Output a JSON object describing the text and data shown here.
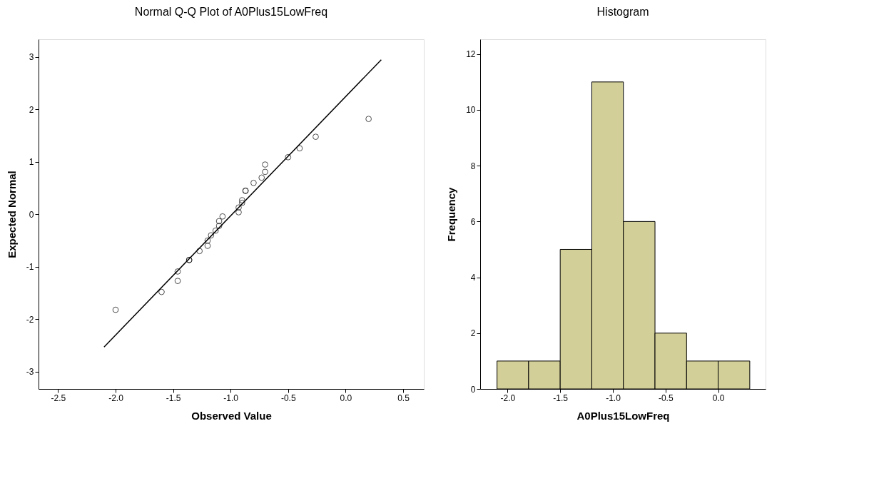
{
  "chart_data": [
    {
      "type": "scatter",
      "title": "Normal Q-Q Plot of A0Plus15LowFreq",
      "xlabel": "Observed Value",
      "ylabel": "Expected Normal",
      "xlim": [
        -2.67,
        0.68
      ],
      "ylim": [
        -3.33,
        3.34
      ],
      "xticks": [
        {
          "value": -2.5,
          "label": "-2.5"
        },
        {
          "value": -2,
          "label": "-2.0"
        },
        {
          "value": -1.5,
          "label": "-1.5"
        },
        {
          "value": -1,
          "label": "-1.0"
        },
        {
          "value": -0.5,
          "label": "-0.5"
        },
        {
          "value": 0,
          "label": "0.0"
        },
        {
          "value": 0.5,
          "label": "0.5"
        }
      ],
      "yticks": [
        -3,
        -2,
        -1,
        0,
        1,
        2,
        3
      ],
      "grid": false,
      "series": [
        {
          "type": "scatter",
          "marker": "circle",
          "color": "#000000",
          "x": [
            -2.0,
            -1.6,
            -1.46,
            -1.46,
            -1.36,
            -1.36,
            -1.27,
            -1.2,
            -1.2,
            -1.17,
            -1.13,
            -1.1,
            -1.1,
            -1.07,
            -0.93,
            -0.93,
            -0.9,
            -0.9,
            -0.87,
            -0.87,
            -0.8,
            -0.73,
            -0.7,
            -0.7,
            -0.5,
            -0.4,
            -0.26,
            0.2
          ],
          "values": [
            -1.82,
            -1.48,
            -1.27,
            -1.09,
            -0.87,
            -0.87,
            -0.7,
            -0.6,
            -0.5,
            -0.4,
            -0.31,
            -0.22,
            -0.13,
            -0.04,
            0.04,
            0.13,
            0.22,
            0.27,
            0.45,
            0.45,
            0.6,
            0.7,
            0.81,
            0.95,
            1.09,
            1.26,
            1.48,
            1.82
          ]
        },
        {
          "type": "line",
          "color": "#000000",
          "x": [
            -2.1,
            0.31
          ],
          "values": [
            -2.53,
            2.95
          ]
        }
      ]
    },
    {
      "type": "histogram",
      "title": "Histogram",
      "xlabel": "A0Plus15LowFreq",
      "ylabel": "Frequency",
      "color": "#d3cf98",
      "bins": [
        -2.1,
        -1.8,
        -1.5,
        -1.2,
        -0.9,
        -0.6,
        -0.3,
        0.0,
        0.3
      ],
      "values": [
        1,
        1,
        5,
        11,
        6,
        2,
        1,
        1
      ],
      "xlim": [
        -2.26,
        0.45
      ],
      "ylim": [
        0,
        12.53
      ],
      "xticks": [
        {
          "value": -2,
          "label": "-2.0"
        },
        {
          "value": -1.5,
          "label": "-1.5"
        },
        {
          "value": -1,
          "label": "-1.0"
        },
        {
          "value": -0.5,
          "label": "-0.5"
        },
        {
          "value": 0,
          "label": "0.0"
        }
      ],
      "yticks": [
        0,
        2,
        4,
        6,
        8,
        10,
        12
      ],
      "grid": false
    }
  ]
}
